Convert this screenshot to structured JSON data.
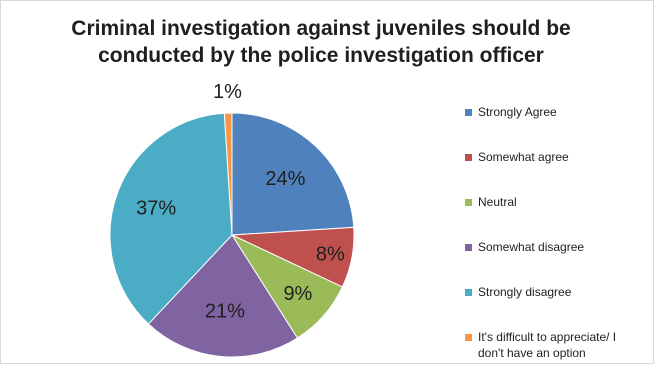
{
  "chart_data": {
    "type": "pie",
    "title": "Criminal investigation against juveniles should be\nconducted by the police investigation officer",
    "categories": [
      "Strongly Agree",
      "Somewhat agree",
      "Neutral",
      "Somewhat disagree",
      "Strongly disagree",
      "It's difficult to appreciate/ I\ndon't have an option"
    ],
    "values": [
      24,
      8,
      9,
      21,
      37,
      1
    ],
    "labels": [
      "24%",
      "8%",
      "9%",
      "21%",
      "37%",
      "1%"
    ],
    "colors": [
      "#4f81bd",
      "#c0504d",
      "#9bbb59",
      "#8064a2",
      "#4bacc6",
      "#f79646"
    ],
    "legend_position": "right"
  }
}
